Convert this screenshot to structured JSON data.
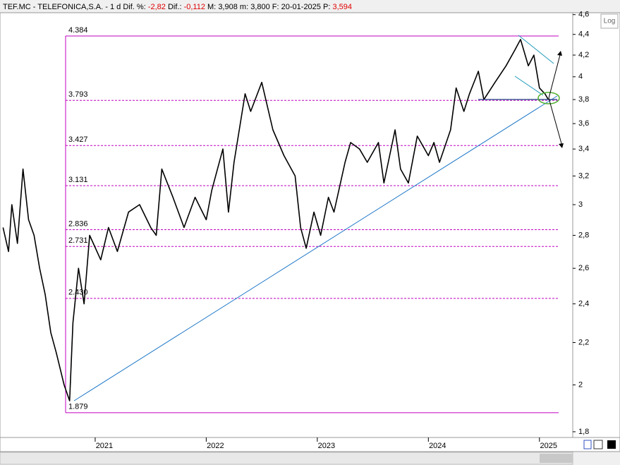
{
  "chart_data": {
    "type": "line",
    "title": "TEF.MC - TELEFONICA,S.A. - 1 d",
    "stats": [
      {
        "label": "Dif. %:",
        "value": "-2,82",
        "color": "#e00000"
      },
      {
        "label": "Dif.:",
        "value": "-0,112",
        "color": "#e00000"
      },
      {
        "label": "M:",
        "value": "3,908",
        "color": "#000000"
      },
      {
        "label": "m:",
        "value": "3,800",
        "color": "#000000"
      },
      {
        "label": "F:",
        "value": "20-01-2025",
        "color": "#000000"
      },
      {
        "label": "P:",
        "value": "3,594",
        "color": "#e00000"
      }
    ],
    "log_scale": true,
    "log_button": "Log",
    "x": [
      2020.17,
      2020.22,
      2020.25,
      2020.3,
      2020.35,
      2020.4,
      2020.45,
      2020.5,
      2020.55,
      2020.6,
      2020.65,
      2020.72,
      2020.77,
      2020.8,
      2020.85,
      2020.9,
      2020.95,
      2021.05,
      2021.12,
      2021.2,
      2021.3,
      2021.4,
      2021.5,
      2021.55,
      2021.6,
      2021.7,
      2021.8,
      2021.9,
      2022.0,
      2022.05,
      2022.15,
      2022.2,
      2022.25,
      2022.35,
      2022.4,
      2022.5,
      2022.6,
      2022.7,
      2022.8,
      2022.85,
      2022.9,
      2022.97,
      2023.03,
      2023.1,
      2023.15,
      2023.25,
      2023.3,
      2023.38,
      2023.45,
      2023.55,
      2023.6,
      2023.7,
      2023.75,
      2023.82,
      2023.9,
      2024.0,
      2024.05,
      2024.1,
      2024.2,
      2024.25,
      2024.32,
      2024.37,
      2024.45,
      2024.5,
      2024.6,
      2024.7,
      2024.78,
      2024.83,
      2024.9,
      2024.95,
      2025.0,
      2025.05,
      2025.08
    ],
    "series": [
      {
        "name": "TEF.MC",
        "color": "#000000",
        "values": [
          2.85,
          2.7,
          3.0,
          2.75,
          3.25,
          2.9,
          2.8,
          2.6,
          2.45,
          2.25,
          2.15,
          2.0,
          1.93,
          2.3,
          2.6,
          2.4,
          2.8,
          2.65,
          2.85,
          2.7,
          2.95,
          3.0,
          2.85,
          2.8,
          3.25,
          3.05,
          2.85,
          3.05,
          2.9,
          3.1,
          3.4,
          2.95,
          3.3,
          3.85,
          3.7,
          3.95,
          3.55,
          3.35,
          3.2,
          2.85,
          2.72,
          2.95,
          2.8,
          3.05,
          2.95,
          3.3,
          3.45,
          3.4,
          3.3,
          3.45,
          3.15,
          3.55,
          3.25,
          3.15,
          3.5,
          3.35,
          3.45,
          3.3,
          3.55,
          3.9,
          3.7,
          3.85,
          4.05,
          3.8,
          3.95,
          4.1,
          4.25,
          4.35,
          4.1,
          4.2,
          3.9,
          3.85,
          3.8
        ]
      }
    ],
    "levels": [
      4.384,
      3.793,
      3.427,
      3.131,
      2.836,
      2.731,
      {
        "value": 2.43,
        "label": "2.430"
      },
      1.879
    ],
    "levels_color": "#c000c0",
    "xlim": [
      2020.143,
      2025.3
    ],
    "xticks": [
      2021,
      2022,
      2023,
      2024,
      2025
    ],
    "ylim": [
      1.777,
      4.62
    ],
    "yticks": [
      {
        "value": 1.8,
        "label": "1,8"
      },
      2,
      {
        "value": 2.2,
        "label": "2,2"
      },
      {
        "value": 2.4,
        "label": "2,4"
      },
      {
        "value": 2.6,
        "label": "2,6"
      },
      {
        "value": 2.8,
        "label": "2,8"
      },
      3,
      {
        "value": 3.2,
        "label": "3,2"
      },
      {
        "value": 3.4,
        "label": "3,4"
      },
      {
        "value": 3.6,
        "label": "3,6"
      },
      {
        "value": 3.8,
        "label": "3,8"
      },
      4,
      {
        "value": 4.2,
        "label": "4,2"
      },
      {
        "value": 4.4,
        "label": "4,4"
      },
      {
        "value": 4.6,
        "label": "4,6"
      }
    ]
  }
}
